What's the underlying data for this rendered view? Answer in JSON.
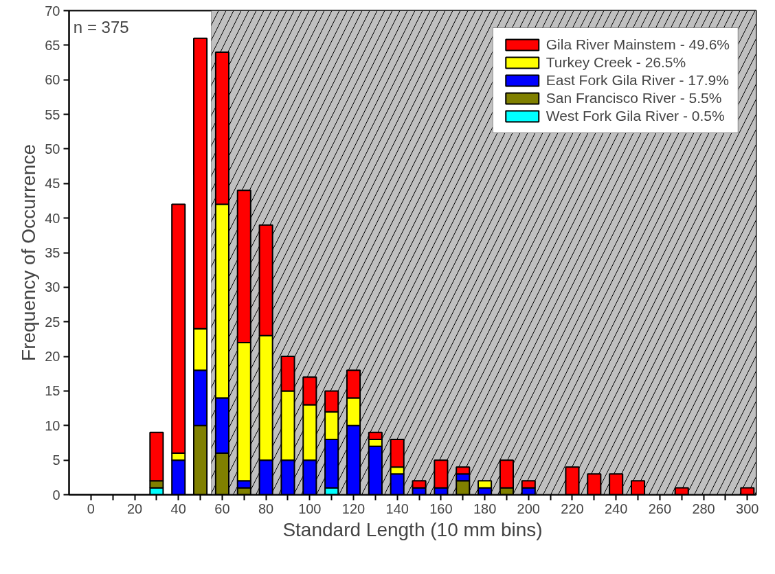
{
  "chart_data": {
    "type": "bar",
    "stacked": true,
    "xlabel": "Standard Length (10 mm bins)",
    "ylabel": "Frequency of Occurrence",
    "x": [
      30,
      40,
      50,
      60,
      70,
      80,
      90,
      100,
      110,
      120,
      130,
      140,
      150,
      160,
      170,
      180,
      190,
      200,
      210,
      220,
      230,
      240,
      250,
      260,
      270,
      280,
      290,
      300
    ],
    "series": [
      {
        "name": "West Fork Gila River - 0.5%",
        "color": "#00ffff",
        "values": [
          1,
          0,
          0,
          0,
          0,
          0,
          0,
          0,
          1,
          0,
          0,
          0,
          0,
          0,
          0,
          0,
          0,
          0,
          0,
          0,
          0,
          0,
          0,
          0,
          0,
          0,
          0,
          0
        ]
      },
      {
        "name": "San Francisco River - 5.5%",
        "color": "#808000",
        "values": [
          1,
          0,
          10,
          6,
          1,
          0,
          0,
          0,
          0,
          0,
          0,
          0,
          0,
          0,
          2,
          0,
          1,
          0,
          0,
          0,
          0,
          0,
          0,
          0,
          0,
          0,
          0,
          0
        ]
      },
      {
        "name": "East Fork Gila River - 17.9%",
        "color": "#0000ff",
        "values": [
          0,
          5,
          8,
          8,
          1,
          5,
          5,
          5,
          7,
          10,
          7,
          3,
          1,
          1,
          1,
          1,
          0,
          1,
          0,
          0,
          0,
          0,
          0,
          0,
          0,
          0,
          0,
          0
        ]
      },
      {
        "name": "Turkey Creek - 26.5%",
        "color": "#ffff00",
        "values": [
          0,
          1,
          6,
          28,
          20,
          18,
          10,
          8,
          4,
          4,
          1,
          1,
          0,
          0,
          0,
          1,
          0,
          0,
          0,
          0,
          0,
          0,
          0,
          0,
          0,
          0,
          0,
          0
        ]
      },
      {
        "name": "Gila River Mainstem - 49.6%",
        "color": "#ff0000",
        "values": [
          7,
          36,
          42,
          22,
          22,
          16,
          5,
          4,
          3,
          4,
          1,
          4,
          1,
          4,
          1,
          0,
          4,
          1,
          0,
          4,
          3,
          3,
          2,
          0,
          1,
          0,
          0,
          1
        ]
      }
    ],
    "xlim": [
      -10,
      304
    ],
    "ylim": [
      0,
      70
    ],
    "xticks": [
      0,
      {
        "value": 10,
        "label": null
      },
      20,
      {
        "value": 30,
        "label": null
      },
      40,
      {
        "value": 50,
        "label": null
      },
      60,
      {
        "value": 70,
        "label": null
      },
      80,
      {
        "value": 90,
        "label": null
      },
      100,
      {
        "value": 110,
        "label": null
      },
      120,
      {
        "value": 130,
        "label": null
      },
      140,
      {
        "value": 150,
        "label": null
      },
      160,
      {
        "value": 170,
        "label": null
      },
      180,
      {
        "value": 190,
        "label": null
      },
      200,
      {
        "value": 210,
        "label": null
      },
      220,
      {
        "value": 230,
        "label": null
      },
      240,
      {
        "value": 250,
        "label": null
      },
      260,
      {
        "value": 270,
        "label": null
      },
      280,
      {
        "value": 290,
        "label": null
      },
      300
    ],
    "yticks": [
      0,
      5,
      10,
      15,
      20,
      25,
      30,
      35,
      40,
      45,
      50,
      55,
      60,
      65,
      70
    ],
    "bands": [
      {
        "axis": "x",
        "from": 55,
        "to": 304,
        "label": null,
        "color": "#c0c0c0"
      }
    ],
    "annotations": [
      "n = 375"
    ],
    "grid": false,
    "legend": "top right"
  }
}
